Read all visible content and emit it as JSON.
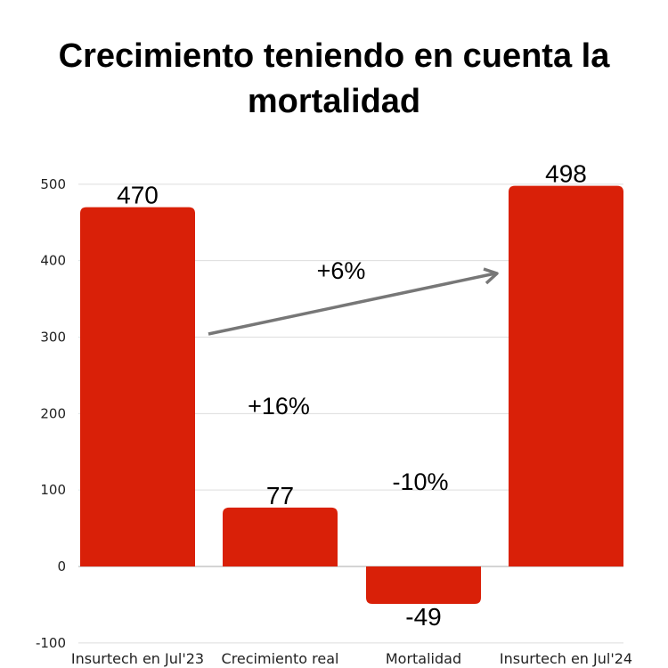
{
  "chart_data": {
    "type": "bar",
    "subtype": "waterfall",
    "title": "Crecimiento teniendo en cuenta la mortalidad",
    "xlabel": "",
    "ylabel": "",
    "categories": [
      "Insurtech en Jul'23",
      "Crecimiento real",
      "Mortalidad",
      "Insurtech en Jul'24"
    ],
    "values": [
      470,
      77,
      -49,
      498
    ],
    "data_labels": [
      "470",
      "77",
      "-49",
      "498"
    ],
    "ylim": [
      -100,
      500
    ],
    "yticks": [
      -100,
      0,
      100,
      200,
      300,
      400,
      500
    ],
    "ytick_labels": [
      "-100",
      "0",
      "100",
      "200",
      "300",
      "400",
      "500"
    ],
    "grid": true,
    "legend": "none",
    "bar_color": "#d92008",
    "arrow_color": "#777777",
    "annotations": [
      "+6%",
      "+16%",
      "-10%"
    ]
  }
}
